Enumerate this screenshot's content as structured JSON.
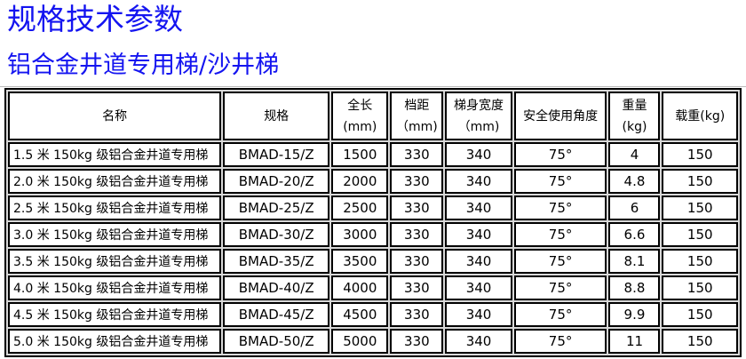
{
  "title": "规格技术参数",
  "subtitle": "铝合金井道专用梯/沙井梯",
  "colors": {
    "heading": "#1414f0",
    "border": "#000000"
  },
  "table": {
    "headers": [
      {
        "l1": "名称",
        "l2": ""
      },
      {
        "l1": "规格",
        "l2": ""
      },
      {
        "l1": "全长",
        "l2": "(mm)"
      },
      {
        "l1": "档距",
        "l2": "（mm)"
      },
      {
        "l1": "梯身宽度",
        "l2": "（mm)"
      },
      {
        "l1": "安全使用角度",
        "l2": ""
      },
      {
        "l1": "重量",
        "l2": "(kg)"
      },
      {
        "l1": "载重(kg)",
        "l2": ""
      }
    ],
    "rows": [
      [
        "1.5 米 150kg 级铝合金井道专用梯",
        "BMAD-15/Z",
        "1500",
        "330",
        "340",
        "75°",
        "4",
        "150"
      ],
      [
        "2.0 米 150kg 级铝合金井道专用梯",
        "BMAD-20/Z",
        "2000",
        "330",
        "340",
        "75°",
        "4.8",
        "150"
      ],
      [
        "2.5 米 150kg 级铝合金井道专用梯",
        "BMAD-25/Z",
        "2500",
        "330",
        "340",
        "75°",
        "6",
        "150"
      ],
      [
        "3.0 米 150kg 级铝合金井道专用梯",
        "BMAD-30/Z",
        "3000",
        "330",
        "340",
        "75°",
        "6.6",
        "150"
      ],
      [
        "3.5 米 150kg 级铝合金井道专用梯",
        "BMAD-35/Z",
        "3500",
        "330",
        "340",
        "75°",
        "8.1",
        "150"
      ],
      [
        "4.0 米 150kg 级铝合金井道专用梯",
        "BMAD-40/Z",
        "4000",
        "330",
        "340",
        "75°",
        "8.8",
        "150"
      ],
      [
        "4.5 米 150kg 级铝合金井道专用梯",
        "BMAD-45/Z",
        "4500",
        "330",
        "340",
        "75°",
        "9.9",
        "150"
      ],
      [
        "5.0 米 150kg 级铝合金井道专用梯",
        "BMAD-50/Z",
        "5000",
        "330",
        "340",
        "75°",
        "11",
        "150"
      ]
    ]
  }
}
